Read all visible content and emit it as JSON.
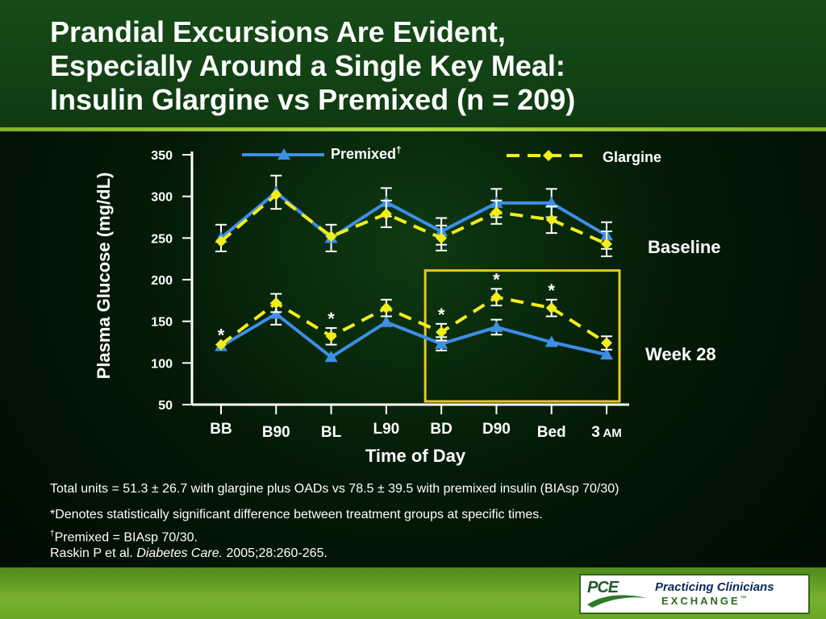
{
  "title": {
    "line1": "Prandial Excursions Are Evident,",
    "line2": "Especially Around a Single Key Meal:",
    "line3": "Insulin Glargine vs Premixed (n = 209)"
  },
  "colors": {
    "premixed": "#3d8fe6",
    "glargine": "#f2ee1a",
    "highlight_box": "#e6c62a",
    "header_rule": "#8cc038"
  },
  "chart_data": {
    "type": "line",
    "xlabel": "Time of Day",
    "ylabel": "Plasma Glucose (mg/dL)",
    "ylim": [
      50,
      350
    ],
    "yticks": [
      "350",
      "300",
      "250",
      "200",
      "150",
      "100",
      "50"
    ],
    "categories": [
      "BB",
      "B90",
      "BL",
      "L90",
      "BD",
      "D90",
      "Bed",
      "3"
    ],
    "last_category_suffix": "AM",
    "legend": {
      "premixed": "Premixed",
      "premixed_mark": "†",
      "glargine": "Glargine"
    },
    "group_labels": {
      "baseline": "Baseline",
      "week28": "Week 28"
    },
    "significance_marker": "*",
    "highlight_range": [
      "BD",
      "3 AM"
    ],
    "series": [
      {
        "name": "Premixed",
        "group": "Baseline",
        "values": [
          250,
          305,
          250,
          293,
          258,
          292,
          292,
          253
        ],
        "error": [
          16,
          20,
          16,
          17,
          16,
          17,
          17,
          16
        ]
      },
      {
        "name": "Glargine",
        "group": "Baseline",
        "values": [
          246,
          302,
          252,
          279,
          250,
          281,
          272,
          243
        ],
        "error": [
          0,
          0,
          0,
          16,
          15,
          14,
          16,
          15
        ]
      },
      {
        "name": "Premixed",
        "group": "Week 28",
        "values": [
          120,
          159,
          107,
          149,
          123,
          143,
          125,
          110
        ],
        "error": [
          0,
          13,
          0,
          0,
          8,
          9,
          0,
          0
        ]
      },
      {
        "name": "Glargine",
        "group": "Week 28",
        "values": [
          122,
          172,
          132,
          166,
          137,
          179,
          166,
          124
        ],
        "error": [
          0,
          11,
          10,
          10,
          10,
          10,
          10,
          8
        ]
      }
    ],
    "significant_categories": [
      "BB",
      "BL",
      "BD",
      "D90",
      "Bed"
    ]
  },
  "footnotes": {
    "units": "Total units = 51.3 ± 26.7 with glargine plus OADs vs 78.5 ± 39.5 with premixed insulin (BIAsp 70/30)",
    "asterisk": "*Denotes statistically significant difference between treatment groups at specific times.",
    "dagger_mark": "†",
    "dagger": "Premixed = BIAsp 70/30.",
    "citation_authors": "Raskin P et al. ",
    "citation_journal": "Diabetes Care.",
    "citation_rest": " 2005;28:260-265."
  },
  "logo": {
    "abbr": "PCE",
    "name": "Practicing Clinicians",
    "sub": "EXCHANGE",
    "tm": "™"
  }
}
